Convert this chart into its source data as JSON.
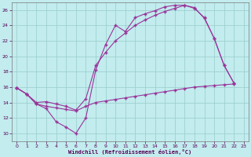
{
  "xlabel": "Windchill (Refroidissement éolien,°C)",
  "bg_color": "#c2ecee",
  "line_color": "#993399",
  "grid_color": "#99cccc",
  "xlim": [
    -0.5,
    23.5
  ],
  "ylim": [
    9.0,
    27.0
  ],
  "xticks": [
    0,
    1,
    2,
    3,
    4,
    5,
    6,
    7,
    8,
    9,
    10,
    11,
    12,
    13,
    14,
    15,
    16,
    17,
    18,
    19,
    20,
    21,
    22,
    23
  ],
  "yticks": [
    10,
    12,
    14,
    16,
    18,
    20,
    22,
    24,
    26
  ],
  "line1_x": [
    0,
    1,
    2,
    3,
    4,
    5,
    6,
    7,
    8,
    9,
    10,
    11,
    12,
    13,
    14,
    15,
    16,
    17,
    18,
    19,
    20,
    21,
    22
  ],
  "line1_y": [
    15.9,
    15.1,
    13.8,
    13.2,
    11.5,
    10.8,
    10.0,
    12.0,
    18.2,
    21.5,
    24.0,
    23.2,
    25.0,
    25.5,
    25.9,
    26.4,
    26.6,
    26.6,
    26.2,
    25.0,
    22.3,
    18.8,
    16.5
  ],
  "line2_x": [
    0,
    1,
    2,
    3,
    4,
    5,
    6,
    7,
    8,
    9,
    10,
    11,
    12,
    13,
    14,
    15,
    16,
    17,
    18,
    19,
    20,
    21,
    22
  ],
  "line2_y": [
    15.9,
    15.1,
    14.0,
    14.1,
    13.8,
    13.5,
    13.0,
    14.5,
    18.8,
    20.5,
    22.0,
    23.0,
    24.0,
    24.7,
    25.3,
    25.8,
    26.2,
    26.6,
    26.3,
    24.9,
    22.3,
    18.8,
    16.5
  ],
  "line3_x": [
    0,
    1,
    2,
    3,
    4,
    5,
    6,
    7,
    8,
    9,
    10,
    11,
    12,
    13,
    14,
    15,
    16,
    17,
    18,
    19,
    20,
    21,
    22
  ],
  "line3_y": [
    15.9,
    15.1,
    13.8,
    13.5,
    13.3,
    13.1,
    12.9,
    13.5,
    14.0,
    14.2,
    14.4,
    14.6,
    14.8,
    15.0,
    15.2,
    15.4,
    15.6,
    15.8,
    16.0,
    16.1,
    16.2,
    16.3,
    16.4
  ]
}
